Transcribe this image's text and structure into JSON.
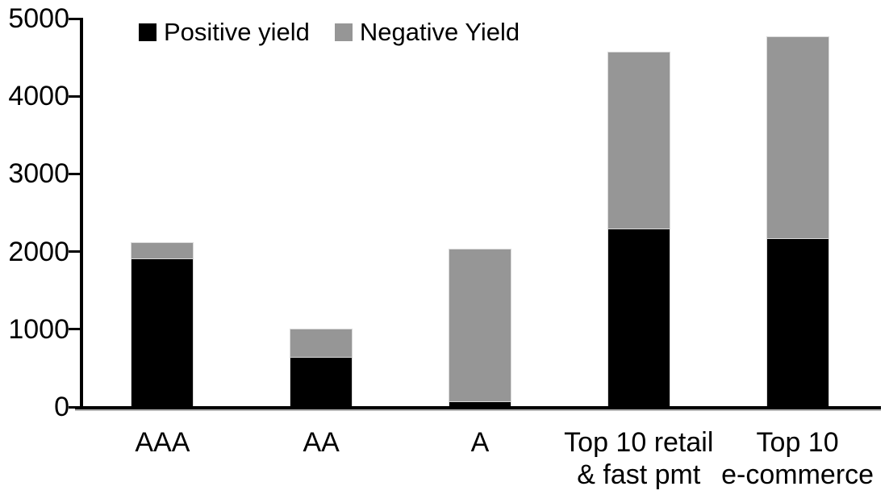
{
  "chart_data": {
    "type": "bar",
    "stacked": true,
    "title": "",
    "xlabel": "",
    "ylabel": "",
    "categories": [
      "AAA",
      "AA",
      "A",
      "Top 10 retail & fast pmt",
      "Top 10 e-commerce"
    ],
    "category_label_lines": [
      [
        "AAA"
      ],
      [
        "AA"
      ],
      [
        "A"
      ],
      [
        "Top 10 retail",
        "& fast pmt"
      ],
      [
        "Top 10",
        "e-commerce"
      ]
    ],
    "series": [
      {
        "name": "Positive yield",
        "color": "#000000",
        "values": [
          1890,
          620,
          50,
          2280,
          2150
        ]
      },
      {
        "name": "Negative Yield",
        "color": "#969696",
        "values": [
          220,
          380,
          1980,
          2280,
          2610
        ]
      }
    ],
    "totals": [
      2110,
      1000,
      2030,
      4560,
      4760
    ],
    "ylim": [
      0,
      5000
    ],
    "yticks": [
      0,
      1000,
      2000,
      3000,
      4000,
      5000
    ],
    "grid": false,
    "legend_position": "top-left"
  },
  "colors": {
    "background": "#ffffff",
    "axis": "#000000",
    "positive_yield": "#000000",
    "negative_yield": "#969696",
    "bar_outline": "#d9d9d9"
  }
}
